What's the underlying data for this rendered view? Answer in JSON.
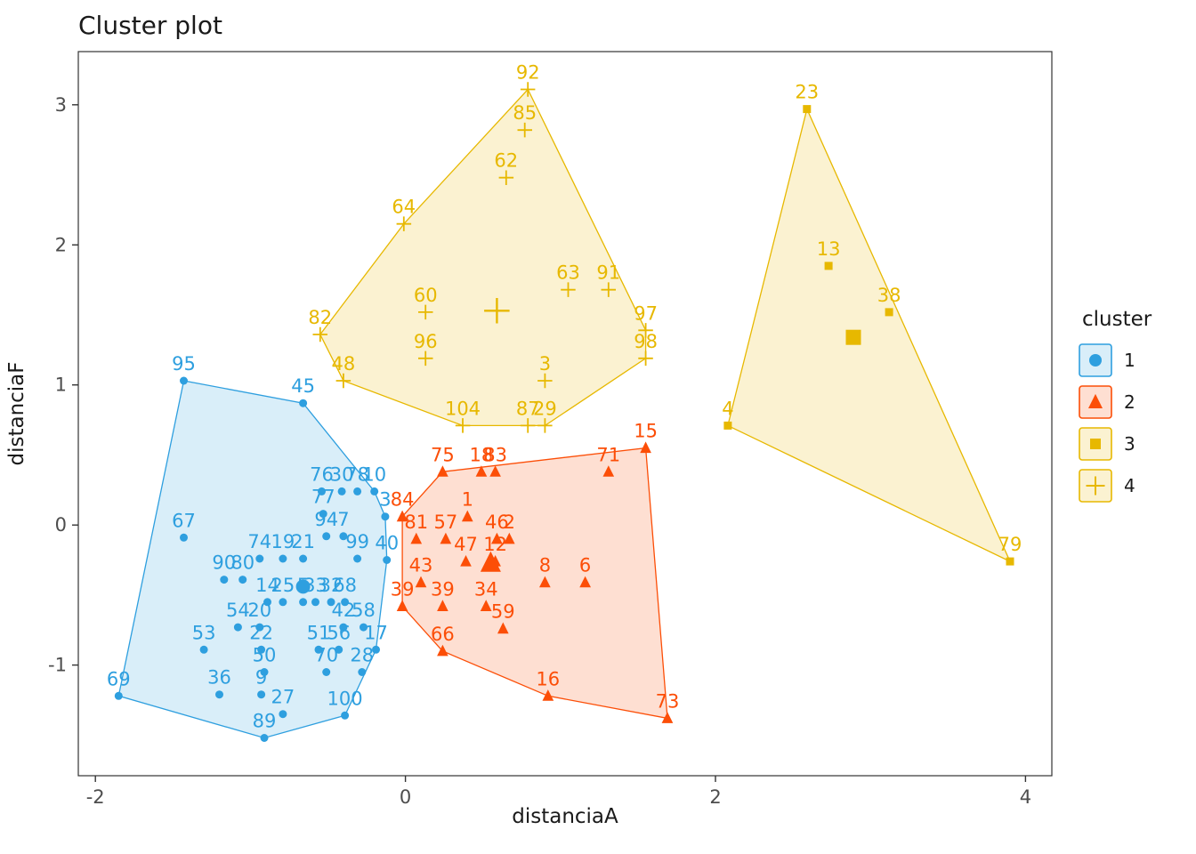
{
  "title": "Cluster plot",
  "legend": {
    "title": "cluster",
    "position": "right",
    "items": [
      "1",
      "2",
      "3",
      "4"
    ]
  },
  "colors": {
    "cluster1": "#2E9FDF",
    "cluster2": "#FC4E07",
    "cluster3": "#E7B800",
    "cluster4": "#E7B800",
    "panel_border": "#333333",
    "tick_label": "#4d4d4d"
  },
  "chart_data": {
    "type": "scatter",
    "title": "Cluster plot",
    "xlabel": "distanciaA",
    "ylabel": "distanciaF",
    "xlim": [
      -2.11,
      4.17
    ],
    "ylim": [
      -1.79,
      3.38
    ],
    "x_ticks": [
      -2,
      0,
      2,
      4
    ],
    "y_ticks": [
      -1,
      0,
      1,
      2,
      3
    ],
    "grid": false,
    "legend_position": "right",
    "series": [
      {
        "name": "1",
        "shape": "circle",
        "color": "#2E9FDF",
        "fill_opacity": 0.18,
        "point_size": 4.5,
        "centroid_size": 8,
        "centroid": [
          -0.66,
          -0.44
        ],
        "hull": [
          [
            -1.43,
            1.03
          ],
          [
            -0.66,
            0.87
          ],
          [
            -0.2,
            0.24
          ],
          [
            -0.13,
            0.06
          ],
          [
            -0.12,
            -0.25
          ],
          [
            -0.19,
            -0.89
          ],
          [
            -0.39,
            -1.36
          ],
          [
            -0.91,
            -1.52
          ],
          [
            -1.85,
            -1.22
          ]
        ],
        "points": [
          [
            "95",
            -1.43,
            1.03
          ],
          [
            "45",
            -0.66,
            0.87
          ],
          [
            "76",
            -0.54,
            0.24
          ],
          [
            "30",
            -0.41,
            0.24
          ],
          [
            "78",
            -0.31,
            0.24
          ],
          [
            "10",
            -0.2,
            0.24
          ],
          [
            "77",
            -0.53,
            0.08
          ],
          [
            "3",
            -0.13,
            0.06
          ],
          [
            "67",
            -1.43,
            -0.09
          ],
          [
            "94",
            -0.51,
            -0.08
          ],
          [
            "7",
            -0.4,
            -0.08
          ],
          [
            "99",
            -0.31,
            -0.24
          ],
          [
            "40",
            -0.12,
            -0.25
          ],
          [
            "74",
            -0.94,
            -0.24
          ],
          [
            "19",
            -0.79,
            -0.24
          ],
          [
            "21",
            -0.66,
            -0.24
          ],
          [
            "90",
            -1.17,
            -0.39
          ],
          [
            "80",
            -1.05,
            -0.39
          ],
          [
            "14",
            -0.89,
            -0.55
          ],
          [
            "25",
            -0.79,
            -0.55
          ],
          [
            "5",
            -0.66,
            -0.55
          ],
          [
            "33",
            -0.58,
            -0.55
          ],
          [
            "32",
            -0.48,
            -0.55
          ],
          [
            "68",
            -0.39,
            -0.55
          ],
          [
            "54",
            -1.08,
            -0.73
          ],
          [
            "20",
            -0.94,
            -0.73
          ],
          [
            "42",
            -0.4,
            -0.73
          ],
          [
            "58",
            -0.27,
            -0.73
          ],
          [
            "53",
            -1.3,
            -0.89
          ],
          [
            "22",
            -0.93,
            -0.89
          ],
          [
            "51",
            -0.56,
            -0.89
          ],
          [
            "56",
            -0.43,
            -0.89
          ],
          [
            "17",
            -0.19,
            -0.89
          ],
          [
            "50",
            -0.91,
            -1.05
          ],
          [
            "70",
            -0.51,
            -1.05
          ],
          [
            "28",
            -0.28,
            -1.05
          ],
          [
            "36",
            -1.2,
            -1.21
          ],
          [
            "9",
            -0.93,
            -1.21
          ],
          [
            "69",
            -1.85,
            -1.22
          ],
          [
            "27",
            -0.79,
            -1.35
          ],
          [
            "100",
            -0.39,
            -1.36
          ],
          [
            "89",
            -0.91,
            -1.52
          ]
        ]
      },
      {
        "name": "2",
        "shape": "triangle",
        "color": "#FC4E07",
        "fill_opacity": 0.18,
        "point_size": 5.5,
        "centroid_size": 10,
        "centroid": [
          0.55,
          -0.27
        ],
        "hull": [
          [
            -0.02,
            0.06
          ],
          [
            0.24,
            0.38
          ],
          [
            1.55,
            0.55
          ],
          [
            1.69,
            -1.38
          ],
          [
            0.92,
            -1.22
          ],
          [
            0.24,
            -0.9
          ],
          [
            -0.02,
            -0.58
          ]
        ],
        "points": [
          [
            "15",
            1.55,
            0.55
          ],
          [
            "75",
            0.24,
            0.38
          ],
          [
            "18",
            0.49,
            0.38
          ],
          [
            "83",
            0.58,
            0.38
          ],
          [
            "71",
            1.31,
            0.38
          ],
          [
            "1",
            0.4,
            0.06
          ],
          [
            "84",
            -0.02,
            0.06
          ],
          [
            "81",
            0.07,
            -0.1
          ],
          [
            "57",
            0.26,
            -0.1
          ],
          [
            "46",
            0.59,
            -0.1
          ],
          [
            "2",
            0.67,
            -0.1
          ],
          [
            "47",
            0.39,
            -0.26
          ],
          [
            "12",
            0.58,
            -0.26
          ],
          [
            "43",
            0.1,
            -0.41
          ],
          [
            "8",
            0.9,
            -0.41
          ],
          [
            "6",
            1.16,
            -0.41
          ],
          [
            "39",
            -0.02,
            -0.58
          ],
          [
            "39",
            0.24,
            -0.58
          ],
          [
            "34",
            0.52,
            -0.58
          ],
          [
            "59",
            0.63,
            -0.74
          ],
          [
            "66",
            0.24,
            -0.9
          ],
          [
            "16",
            0.92,
            -1.22
          ],
          [
            "73",
            1.69,
            -1.38
          ]
        ]
      },
      {
        "name": "3",
        "shape": "square",
        "color": "#E7B800",
        "fill_opacity": 0.18,
        "point_size": 4.5,
        "centroid_size": 8.5,
        "centroid": [
          2.89,
          1.34
        ],
        "hull": [
          [
            2.59,
            2.97
          ],
          [
            3.9,
            -0.26
          ],
          [
            2.08,
            0.71
          ]
        ],
        "points": [
          [
            "23",
            2.59,
            2.97
          ],
          [
            "13",
            2.73,
            1.85
          ],
          [
            "38",
            3.12,
            1.52
          ],
          [
            "4",
            2.08,
            0.71
          ],
          [
            "79",
            3.9,
            -0.26
          ]
        ]
      },
      {
        "name": "4",
        "shape": "plus",
        "color": "#E7B800",
        "fill_opacity": 0.18,
        "point_size": 5.5,
        "centroid_size": 9.5,
        "centroid": [
          0.59,
          1.53
        ],
        "hull": [
          [
            0.79,
            3.11
          ],
          [
            1.55,
            1.39
          ],
          [
            1.55,
            1.19
          ],
          [
            0.9,
            0.71
          ],
          [
            0.37,
            0.71
          ],
          [
            -0.4,
            1.03
          ],
          [
            -0.55,
            1.36
          ],
          [
            -0.01,
            2.15
          ]
        ],
        "points": [
          [
            "92",
            0.79,
            3.11
          ],
          [
            "85",
            0.77,
            2.82
          ],
          [
            "62",
            0.65,
            2.48
          ],
          [
            "64",
            -0.01,
            2.15
          ],
          [
            "63",
            1.05,
            1.68
          ],
          [
            "91",
            1.31,
            1.68
          ],
          [
            "60",
            0.13,
            1.52
          ],
          [
            "97",
            1.55,
            1.39
          ],
          [
            "82",
            -0.55,
            1.36
          ],
          [
            "96",
            0.13,
            1.19
          ],
          [
            "98",
            1.55,
            1.19
          ],
          [
            "48",
            -0.4,
            1.03
          ],
          [
            "3",
            0.9,
            1.03
          ],
          [
            "104",
            0.37,
            0.71
          ],
          [
            "87",
            0.79,
            0.71
          ],
          [
            "29",
            0.9,
            0.71
          ]
        ]
      }
    ]
  }
}
